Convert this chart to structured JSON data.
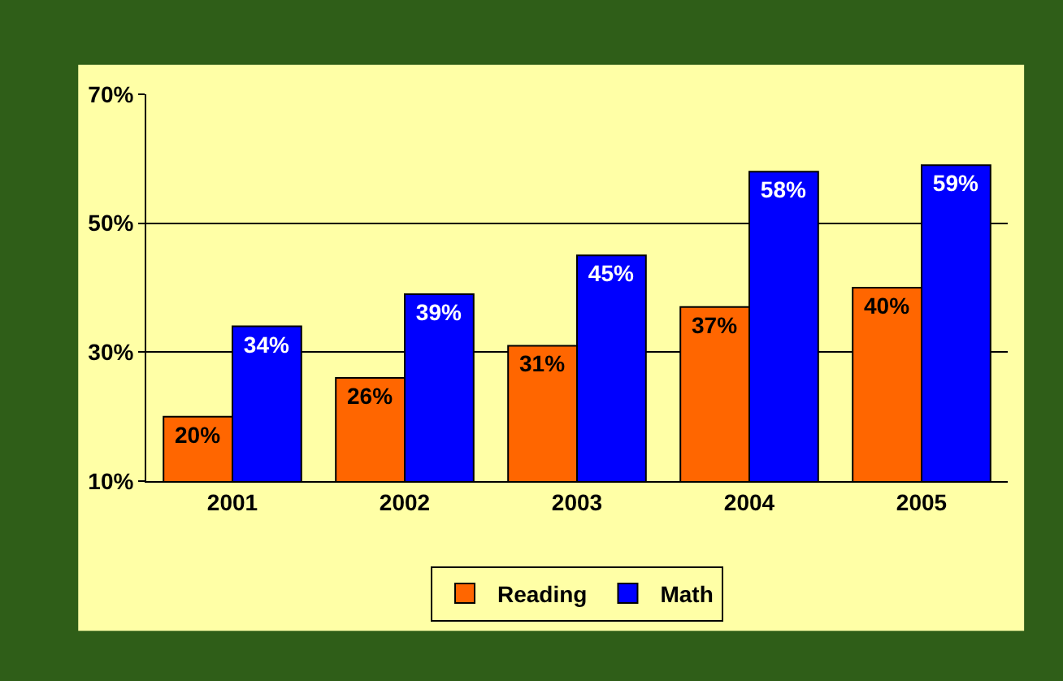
{
  "chart_data": {
    "type": "bar",
    "categories": [
      "2001",
      "2002",
      "2003",
      "2004",
      "2005"
    ],
    "series": [
      {
        "name": "Reading",
        "color": "#ff6600",
        "values": [
          20,
          26,
          31,
          37,
          40
        ],
        "value_labels": [
          "20%",
          "26%",
          "31%",
          "37%",
          "40%"
        ]
      },
      {
        "name": "Math",
        "color": "#0000ff",
        "values": [
          34,
          39,
          45,
          58,
          59
        ],
        "value_labels": [
          "34%",
          "39%",
          "45%",
          "58%",
          "59%"
        ]
      }
    ],
    "ylim": [
      10,
      70
    ],
    "yticks": [
      {
        "value": 10,
        "label": "10%"
      },
      {
        "value": 30,
        "label": "30%"
      },
      {
        "value": 50,
        "label": "50%"
      },
      {
        "value": 70,
        "label": "70%"
      }
    ],
    "grid": "y",
    "legend": "bottom"
  }
}
